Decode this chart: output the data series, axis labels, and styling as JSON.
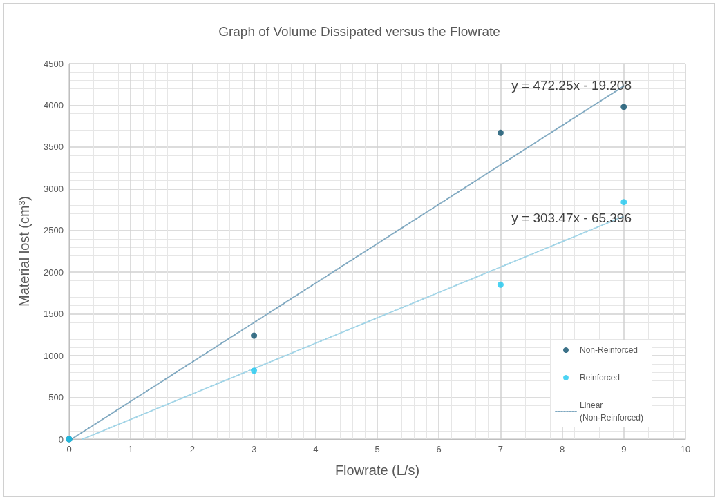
{
  "chart_data": {
    "type": "scatter",
    "title": "Graph of Volume Dissipated versus the Flowrate",
    "xlabel": "Flowrate (L/s)",
    "ylabel": "Material lost (cm³)",
    "xlim": [
      0,
      10
    ],
    "xticks": [
      0,
      1,
      2,
      3,
      4,
      5,
      6,
      7,
      8,
      9,
      10
    ],
    "ylim": [
      0,
      4500
    ],
    "yticks": [
      0,
      500,
      1000,
      1500,
      2000,
      2500,
      3000,
      3500,
      4000,
      4500
    ],
    "grid": true,
    "legend": "bottom right",
    "marker": "circle",
    "series": [
      {
        "name": "Non-Reinforced",
        "color": "#0b4f6c",
        "x": [
          0,
          3,
          7,
          9
        ],
        "values": [
          0,
          1240,
          3670,
          3980
        ]
      },
      {
        "name": "Reinforced",
        "color": "#1ec8f0",
        "x": [
          0,
          3,
          7,
          9
        ],
        "values": [
          0,
          820,
          1850,
          2840
        ]
      },
      {
        "name": "Linear (Non-Reinforced)",
        "type": "line",
        "line_style": "dotted",
        "marker": "none",
        "color": "#7fa8c0",
        "x": [
          0.04,
          9
        ],
        "values": [
          0,
          4230
        ]
      },
      {
        "type": "line",
        "line_style": "dotted",
        "marker": "none",
        "color": "#9fd3e6",
        "x": [
          0.22,
          9
        ],
        "values": [
          0,
          2670
        ]
      }
    ],
    "annotations": [
      "y = 472.25x - 19.208",
      "y = 303.47x - 65.396"
    ]
  }
}
